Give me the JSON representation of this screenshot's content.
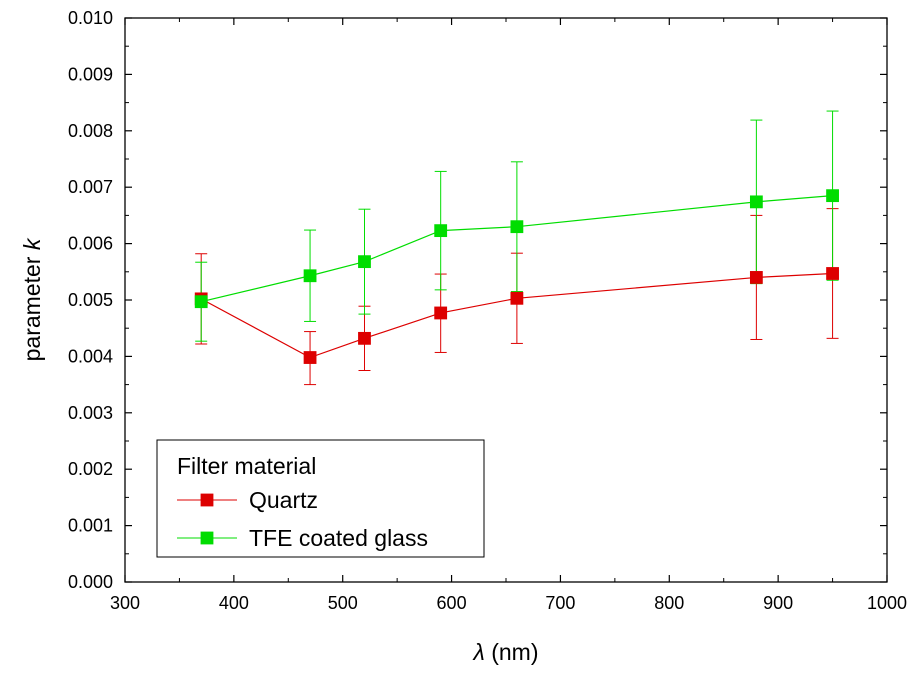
{
  "chart_data": {
    "type": "line",
    "xlabel_symbol": "λ",
    "xlabel_unit": " (nm)",
    "ylabel_text": "parameter ",
    "ylabel_symbol": "k",
    "xlim": [
      300,
      1000
    ],
    "ylim": [
      0.0,
      0.01
    ],
    "xticks": [
      300,
      400,
      500,
      600,
      700,
      800,
      900,
      1000
    ],
    "yticks": [
      "0.000",
      "0.001",
      "0.002",
      "0.003",
      "0.004",
      "0.005",
      "0.006",
      "0.007",
      "0.008",
      "0.009",
      "0.010"
    ],
    "grid": false,
    "legend": {
      "title": "Filter material",
      "placement": "bottom-left"
    },
    "series": [
      {
        "name": "Quartz",
        "color": "#dd0000",
        "marker": "square",
        "x": [
          370,
          470,
          520,
          590,
          660,
          880,
          950
        ],
        "y": [
          0.00502,
          0.00398,
          0.00432,
          0.00477,
          0.00503,
          0.0054,
          0.00547
        ],
        "err_low": [
          0.0008,
          0.00048,
          0.00057,
          0.0007,
          0.0008,
          0.0011,
          0.00115
        ],
        "err_high": [
          0.0008,
          0.00046,
          0.00057,
          0.00069,
          0.0008,
          0.0011,
          0.00115
        ]
      },
      {
        "name": "TFE coated glass",
        "color": "#00dd00",
        "marker": "square",
        "x": [
          370,
          470,
          520,
          590,
          660,
          880,
          950
        ],
        "y": [
          0.00497,
          0.00543,
          0.00568,
          0.00623,
          0.0063,
          0.00674,
          0.00685
        ],
        "err_low": [
          0.0007,
          0.00081,
          0.00093,
          0.00105,
          0.00115,
          0.00145,
          0.0015
        ],
        "err_high": [
          0.0007,
          0.00081,
          0.00093,
          0.00105,
          0.00115,
          0.00145,
          0.0015
        ]
      }
    ]
  }
}
